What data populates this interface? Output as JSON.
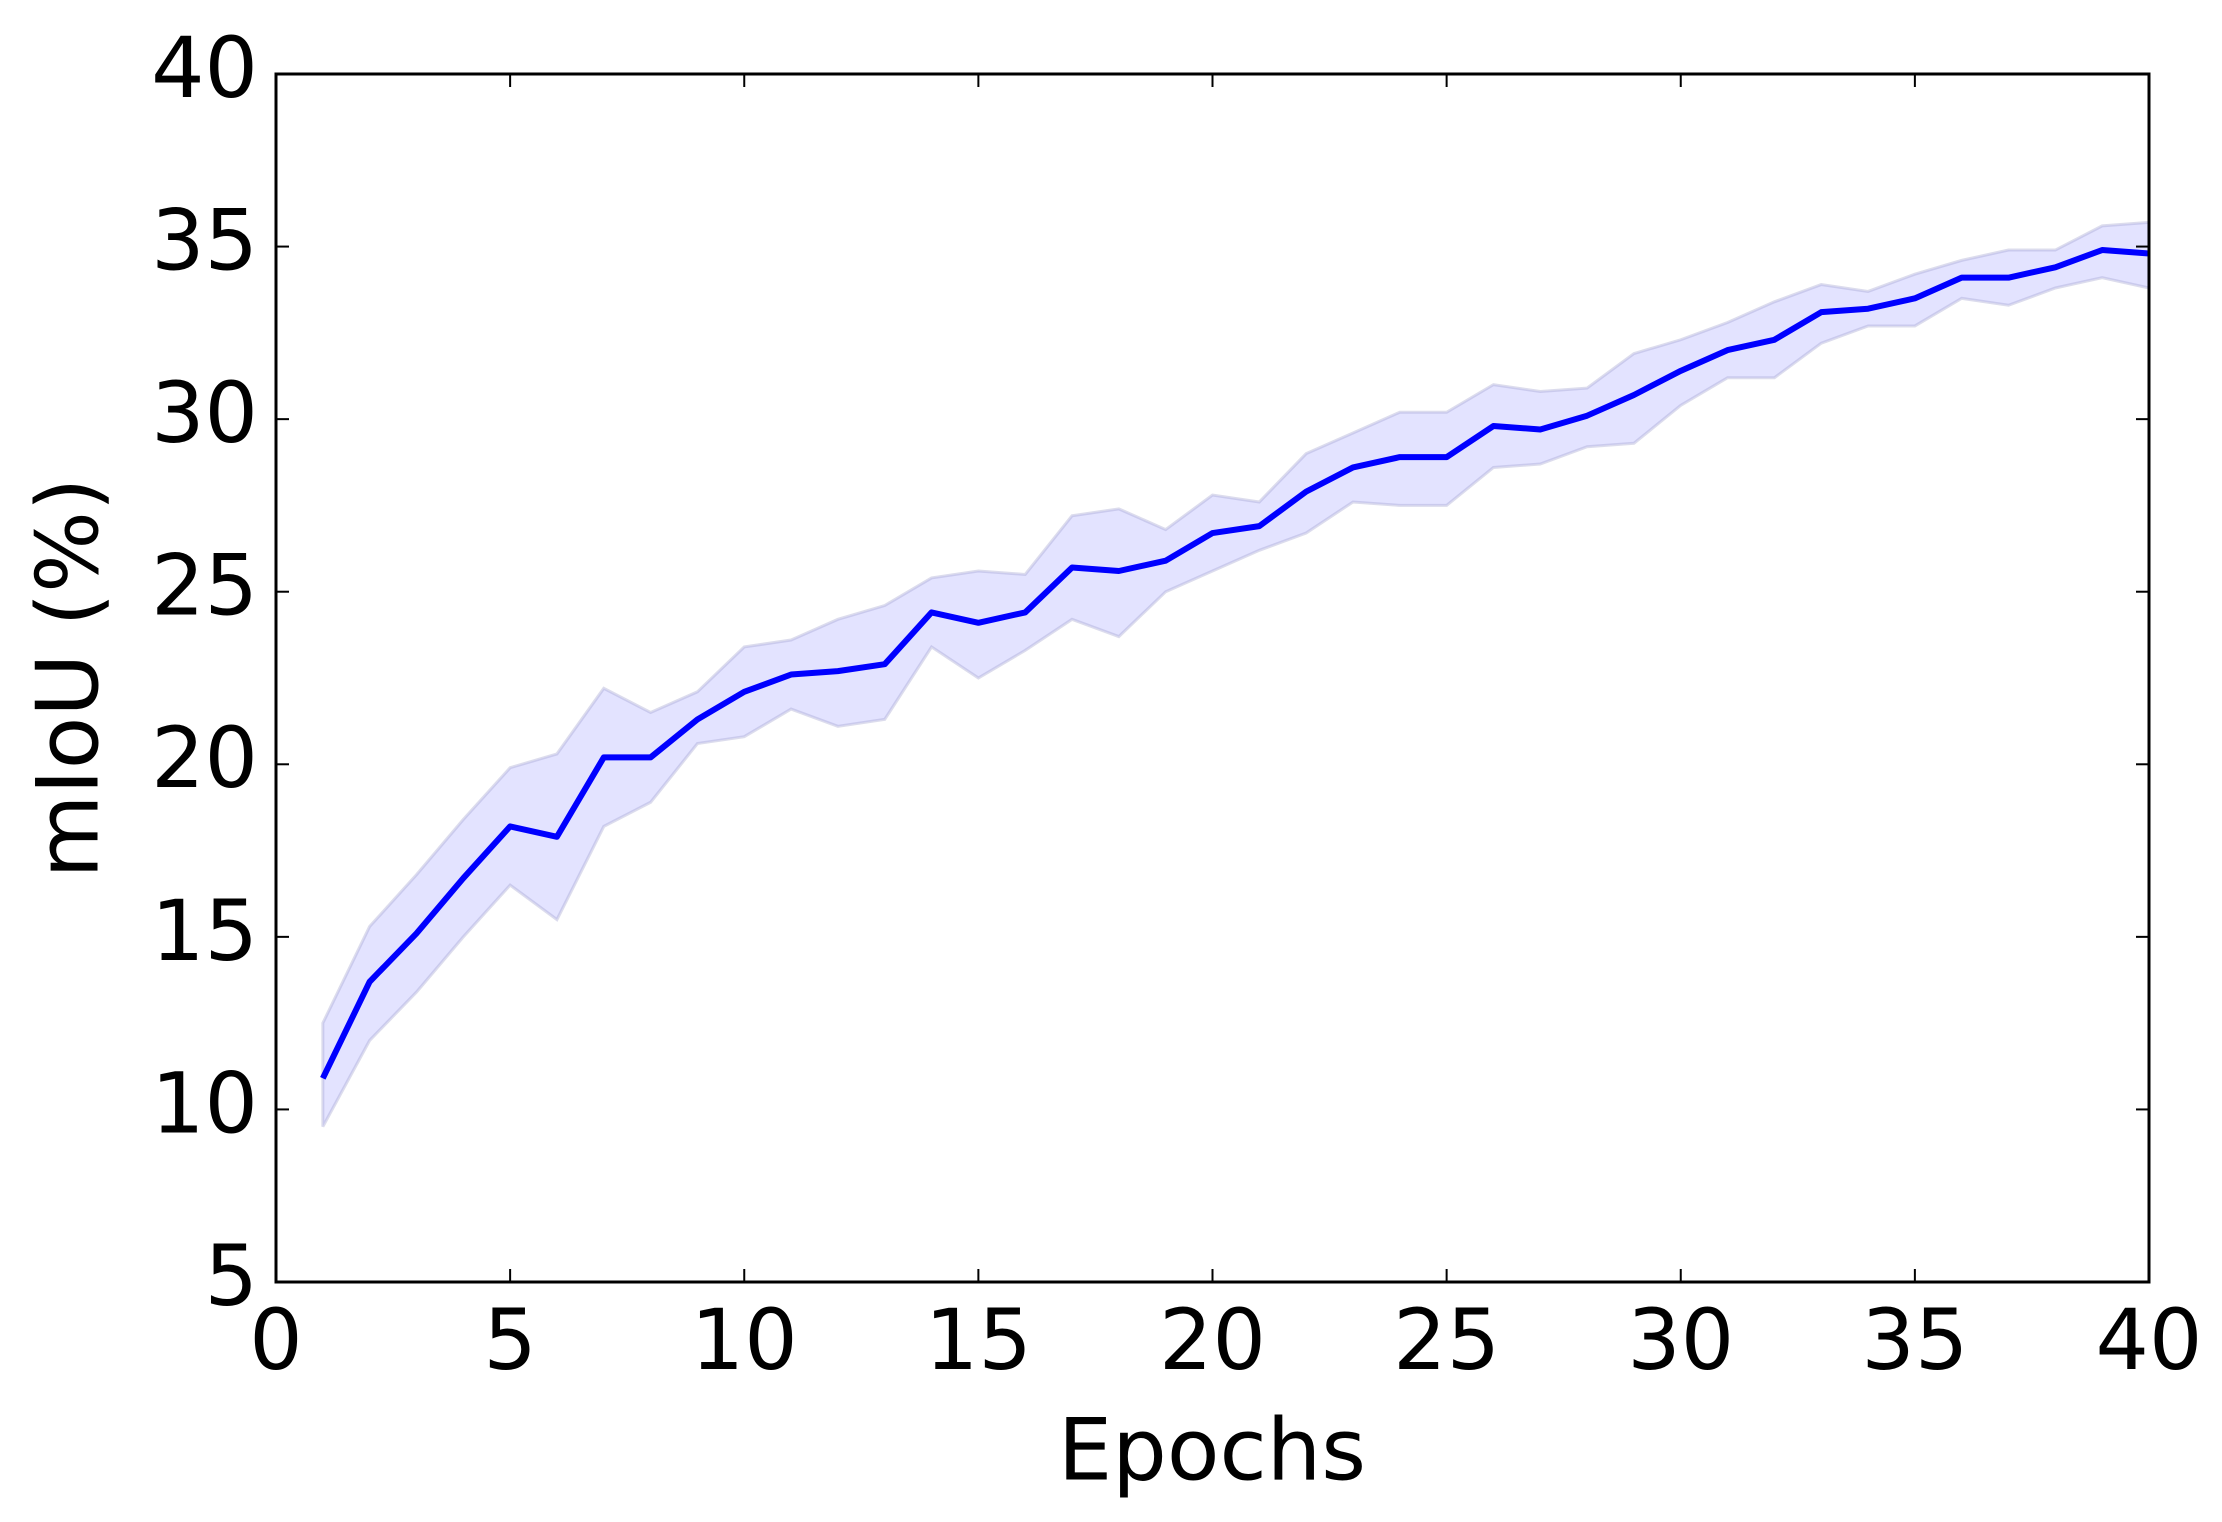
{
  "chart_data": {
    "type": "line",
    "xlabel": "Epochs",
    "ylabel": "mIoU (%)",
    "x": [
      1,
      2,
      3,
      4,
      5,
      6,
      7,
      8,
      9,
      10,
      11,
      12,
      13,
      14,
      15,
      16,
      17,
      18,
      19,
      20,
      21,
      22,
      23,
      24,
      25,
      26,
      27,
      28,
      29,
      30,
      31,
      32,
      33,
      34,
      35,
      36,
      37,
      38,
      39,
      40
    ],
    "series": [
      {
        "color": "#0000ff",
        "values": [
          10.9,
          13.7,
          15.1,
          16.7,
          18.2,
          17.9,
          20.2,
          20.2,
          21.3,
          22.1,
          22.6,
          22.7,
          22.9,
          24.4,
          24.1,
          24.4,
          25.7,
          25.6,
          25.9,
          26.7,
          26.9,
          27.9,
          28.6,
          28.9,
          28.9,
          29.8,
          29.7,
          30.1,
          30.7,
          31.4,
          32.0,
          32.3,
          33.1,
          33.2,
          33.5,
          34.1,
          34.1,
          34.4,
          34.9,
          34.8
        ]
      }
    ],
    "band": {
      "color": "#0000ff",
      "upper": [
        12.5,
        15.3,
        16.8,
        18.4,
        19.9,
        20.3,
        22.2,
        21.5,
        22.1,
        23.4,
        23.6,
        24.2,
        24.6,
        25.4,
        25.6,
        25.5,
        27.2,
        27.4,
        26.8,
        27.8,
        27.6,
        29.0,
        29.6,
        30.2,
        30.2,
        31.0,
        30.8,
        30.9,
        31.9,
        32.3,
        32.8,
        33.4,
        33.9,
        33.7,
        34.2,
        34.6,
        34.9,
        34.9,
        35.6,
        35.7
      ],
      "lower": [
        9.5,
        12.0,
        13.4,
        15.0,
        16.5,
        15.5,
        18.2,
        18.9,
        20.6,
        20.8,
        21.6,
        21.1,
        21.3,
        23.4,
        22.5,
        23.3,
        24.2,
        23.7,
        25.0,
        25.6,
        26.2,
        26.7,
        27.6,
        27.5,
        27.5,
        28.6,
        28.7,
        29.2,
        29.3,
        30.4,
        31.2,
        31.2,
        32.2,
        32.7,
        32.7,
        33.5,
        33.3,
        33.8,
        34.1,
        33.8
      ]
    },
    "xlim": [
      0,
      40
    ],
    "xticks": [
      0,
      5,
      10,
      15,
      20,
      25,
      30,
      35,
      40
    ],
    "ylim": [
      5,
      40
    ],
    "yticks": [
      5,
      10,
      15,
      20,
      25,
      30,
      35,
      40
    ]
  }
}
